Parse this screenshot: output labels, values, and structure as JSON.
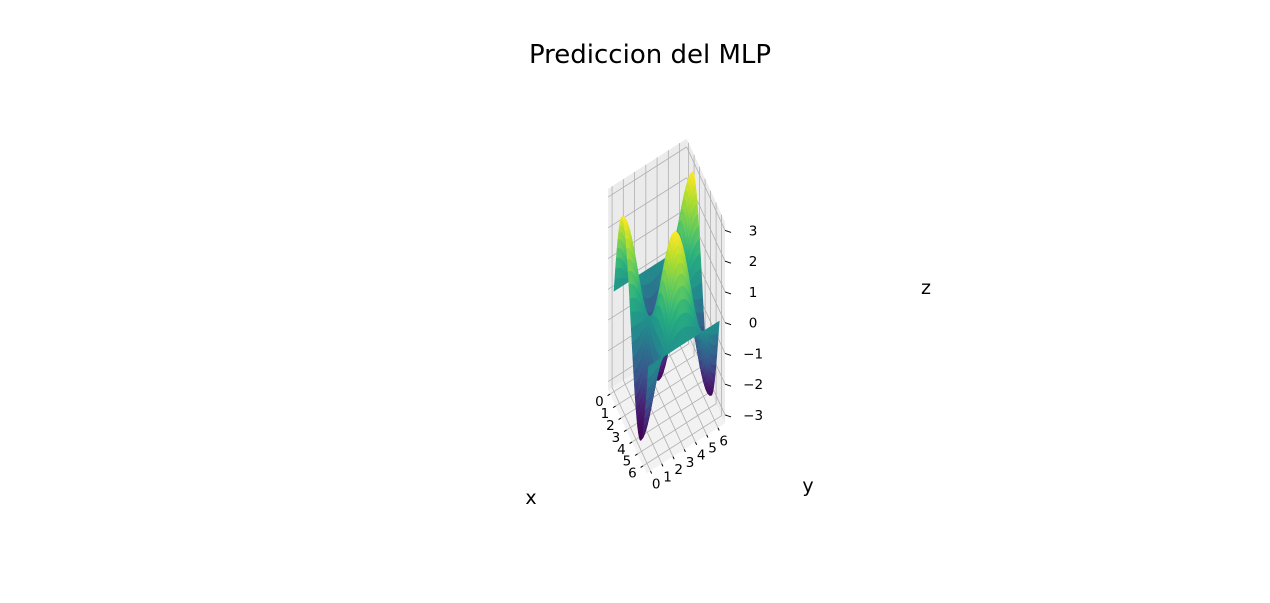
{
  "chart_data": {
    "type": "surface",
    "title": "Prediccion del MLP",
    "xlabel": "x",
    "ylabel": "y",
    "zlabel": "z",
    "xlim": [
      0,
      6.28
    ],
    "ylim": [
      0,
      6.28
    ],
    "zlim": [
      -3,
      3
    ],
    "xticks": [
      "0",
      "1",
      "2",
      "3",
      "4",
      "5",
      "6"
    ],
    "yticks": [
      "0",
      "1",
      "2",
      "3",
      "4",
      "5",
      "6"
    ],
    "zticks": [
      "−3",
      "−2",
      "−1",
      "0",
      "1",
      "2",
      "3"
    ],
    "colormap": "viridis",
    "grid": true,
    "surface": {
      "x_range": [
        0,
        6.28
      ],
      "y_range": [
        0,
        6.28
      ],
      "samples": 44,
      "function": "3*sin(x)*cos(y)",
      "z_at_corners": {
        "x0_y0": 0.0,
        "x6_y0": 0.0,
        "x0_y6": 0.0,
        "x6_y6": 0.0
      },
      "z_max": 3.0,
      "z_min": -3.0
    }
  }
}
